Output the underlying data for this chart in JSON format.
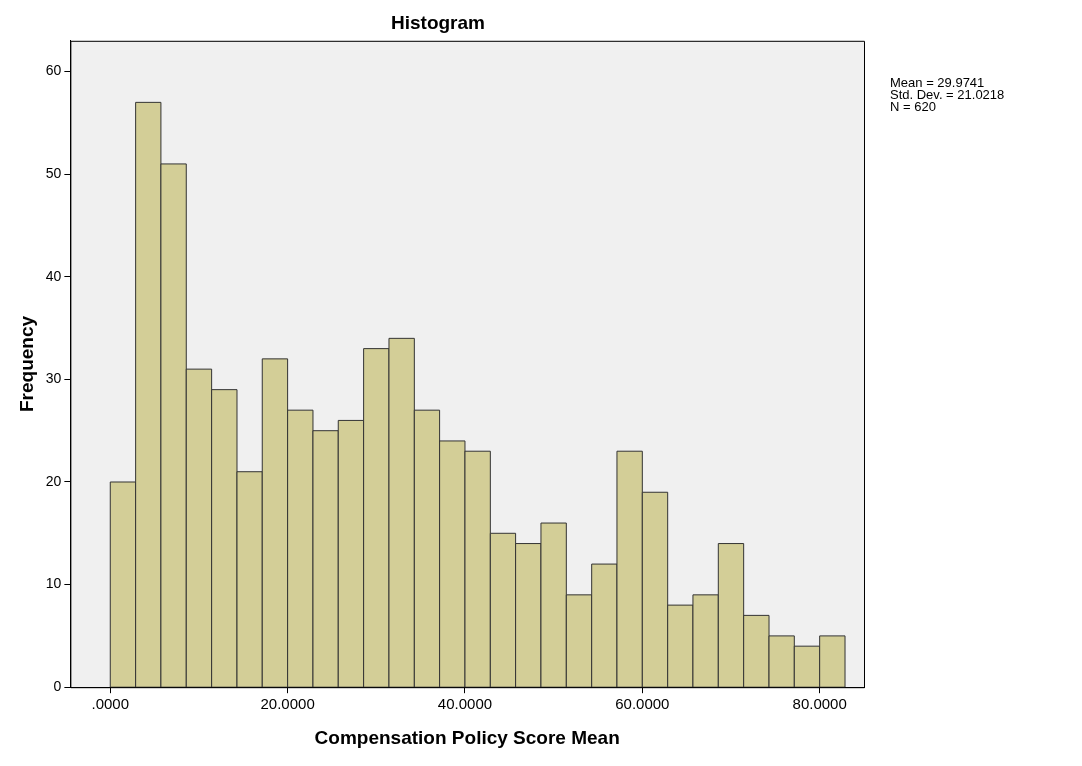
{
  "chart_data": {
    "type": "histogram",
    "title": "Histogram",
    "xlabel": "Compensation Policy Score Mean",
    "ylabel": "Frequency",
    "bins": [
      0,
      2.86,
      5.71,
      8.57,
      11.43,
      14.29,
      17.14,
      20,
      22.86,
      25.71,
      28.57,
      31.43,
      34.29,
      37.14,
      40,
      42.86,
      45.71,
      48.57,
      51.43,
      54.29,
      57.14,
      60,
      62.86,
      65.71,
      68.57,
      71.43,
      74.29,
      77.14,
      80,
      82.86
    ],
    "values": [
      20,
      57,
      51,
      31,
      29,
      21,
      32,
      27,
      25,
      26,
      33,
      34,
      27,
      24,
      23,
      15,
      14,
      16,
      9,
      12,
      23,
      19,
      8,
      9,
      14,
      7,
      5,
      4,
      5
    ],
    "color": "#d3ce97",
    "xlim": [
      -4.5,
      85
    ],
    "xticks": [
      {
        "value": 0,
        "label": ".0000"
      },
      {
        "value": 20,
        "label": "20.0000"
      },
      {
        "value": 40,
        "label": "40.0000"
      },
      {
        "value": 60,
        "label": "60.0000"
      },
      {
        "value": 80,
        "label": "80.0000"
      }
    ],
    "ylim": [
      0,
      63
    ],
    "yticks": [
      0,
      10,
      20,
      30,
      40,
      50,
      60
    ],
    "grid": false,
    "legend": false,
    "annotations": [
      "Mean = 29.9741",
      "Std. Dev. = 21.0218",
      "N = 620"
    ]
  }
}
